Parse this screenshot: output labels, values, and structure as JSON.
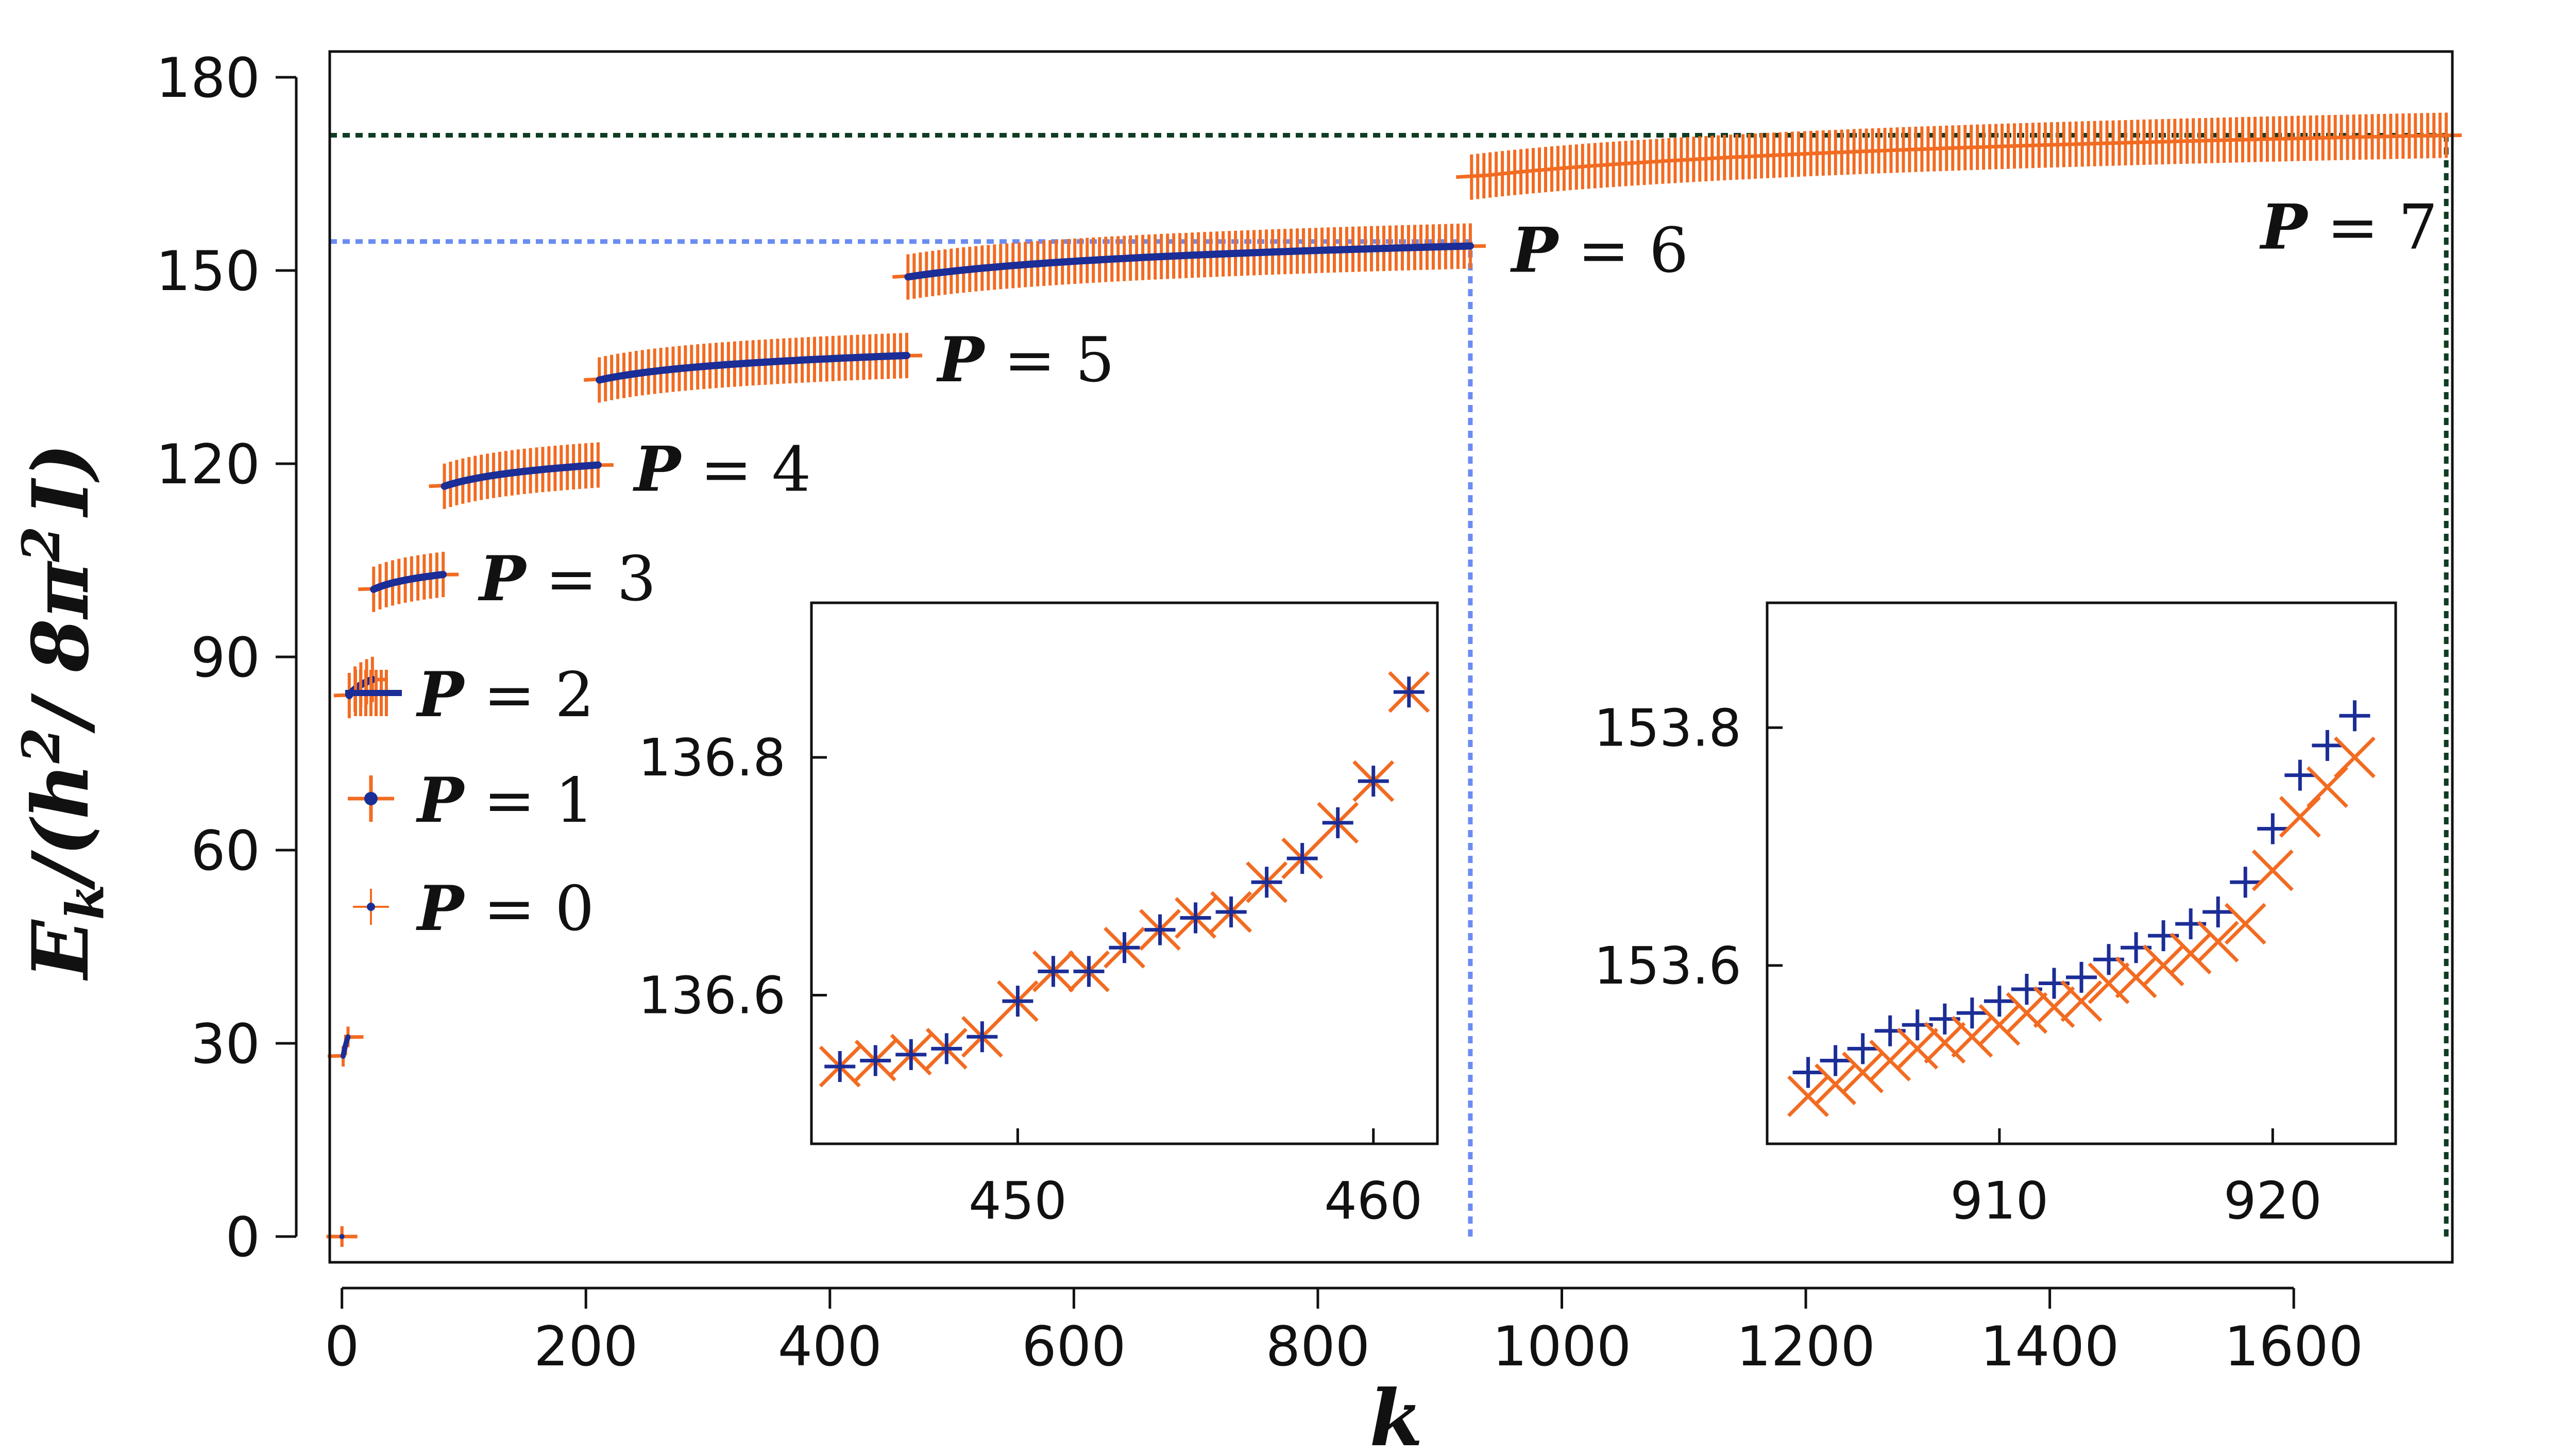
{
  "chart_data": {
    "type": "scatter",
    "xlabel": "k",
    "ylabel_parts": {
      "lead": "E",
      "sub": "k",
      "open": "/(",
      "h": "h",
      "sup1": "2",
      "mid": "/ 8π",
      "sup2": "2",
      "I": "I",
      "close": ")"
    },
    "xlim": [
      -10,
      1730
    ],
    "ylim": [
      -4,
      184
    ],
    "xticks": [
      0,
      200,
      400,
      600,
      800,
      1000,
      1200,
      1400,
      1600
    ],
    "xtick_labels": [
      "0",
      "200",
      "400",
      "600",
      "800",
      "1000",
      "1200",
      "1400",
      "1600"
    ],
    "yticks": [
      0,
      30,
      60,
      90,
      120,
      150,
      180
    ],
    "ytick_labels": [
      "0",
      "30",
      "60",
      "90",
      "120",
      "150",
      "180"
    ],
    "colors": {
      "orange": "#F26B21",
      "blue": "#1B2D96",
      "light_blue": "#6B8CF2",
      "dark_green": "#0F3D24"
    },
    "groups": [
      {
        "label": "P = 0",
        "k_start": 0,
        "k_end": 0,
        "E_start": 0,
        "E_end": 0,
        "curve": 1
      },
      {
        "label": "P = 1",
        "k_start": 1,
        "k_end": 5,
        "E_start": 28,
        "E_end": 31,
        "curve": 1
      },
      {
        "label": "P = 2",
        "k_start": 6,
        "k_end": 25,
        "E_start": 84,
        "E_end": 86.5,
        "curve": 3
      },
      {
        "label": "P = 3",
        "k_start": 26,
        "k_end": 83,
        "E_start": 100.5,
        "E_end": 102.8,
        "curve": 3
      },
      {
        "label": "P = 4",
        "k_start": 84,
        "k_end": 210,
        "E_start": 116.5,
        "E_end": 119.8,
        "curve": 4
      },
      {
        "label": "P = 5",
        "k_start": 211,
        "k_end": 463,
        "E_start": 133,
        "E_end": 136.8,
        "curve": 5
      },
      {
        "label": "P = 6",
        "k_start": 464,
        "k_end": 925,
        "E_start": 149,
        "E_end": 153.8,
        "curve": 5
      },
      {
        "label": "P = 7",
        "k_start": 926,
        "k_end": 1725,
        "E_start": 164.5,
        "E_end": 171,
        "curve": 5
      }
    ],
    "reference_lines": [
      {
        "name": "blue-horizontal",
        "axis": "y",
        "value": 154.5,
        "from": -10,
        "to": 925
      },
      {
        "name": "blue-vertical",
        "axis": "x",
        "value": 925,
        "from": 0,
        "to": 154.5
      },
      {
        "name": "green-horizontal",
        "axis": "y",
        "value": 171,
        "from": -10,
        "to": 1725
      },
      {
        "name": "green-vertical",
        "axis": "x",
        "value": 1725,
        "from": 0,
        "to": 171
      }
    ],
    "legend": [
      "P = 2",
      "P = 1",
      "P = 0"
    ],
    "legend_position": "left",
    "insets": [
      {
        "name": "inset-left",
        "xlim": [
          444.2,
          461.8
        ],
        "ylim": [
          136.475,
          136.93
        ],
        "xticks": [
          450,
          460
        ],
        "xtick_labels": [
          "450",
          "460"
        ],
        "yticks": [
          136.6,
          136.8
        ],
        "ytick_labels": [
          "136.6",
          "136.8"
        ],
        "k": [
          445,
          446,
          447,
          448,
          449,
          450,
          451,
          452,
          453,
          454,
          455,
          456,
          457,
          458,
          459,
          460,
          461
        ],
        "orange_E": [
          136.54,
          136.545,
          136.55,
          136.555,
          136.565,
          136.595,
          136.62,
          136.62,
          136.64,
          136.655,
          136.665,
          136.67,
          136.695,
          136.715,
          136.745,
          136.78,
          136.855
        ],
        "blue_E": [
          136.54,
          136.545,
          136.55,
          136.555,
          136.565,
          136.595,
          136.62,
          136.62,
          136.64,
          136.655,
          136.665,
          136.67,
          136.695,
          136.715,
          136.745,
          136.78,
          136.855
        ]
      },
      {
        "name": "inset-right",
        "xlim": [
          901.5,
          924.5
        ],
        "ylim": [
          153.45,
          153.905
        ],
        "xticks": [
          910,
          920
        ],
        "xtick_labels": [
          "910",
          "920"
        ],
        "yticks": [
          153.6,
          153.8
        ],
        "ytick_labels": [
          "153.6",
          "153.8"
        ],
        "k": [
          903,
          904,
          905,
          906,
          907,
          908,
          909,
          910,
          911,
          912,
          913,
          914,
          915,
          916,
          917,
          918,
          919,
          920,
          921,
          922,
          923
        ],
        "orange_E": [
          153.49,
          153.5,
          153.51,
          153.52,
          153.53,
          153.535,
          153.54,
          153.55,
          153.56,
          153.565,
          153.57,
          153.585,
          153.59,
          153.6,
          153.61,
          153.62,
          153.635,
          153.68,
          153.725,
          153.75,
          153.775
        ],
        "blue_E": [
          153.51,
          153.52,
          153.53,
          153.545,
          153.55,
          153.555,
          153.56,
          153.57,
          153.58,
          153.585,
          153.59,
          153.605,
          153.615,
          153.625,
          153.635,
          153.645,
          153.67,
          153.715,
          153.76,
          153.785,
          153.81
        ]
      }
    ]
  }
}
